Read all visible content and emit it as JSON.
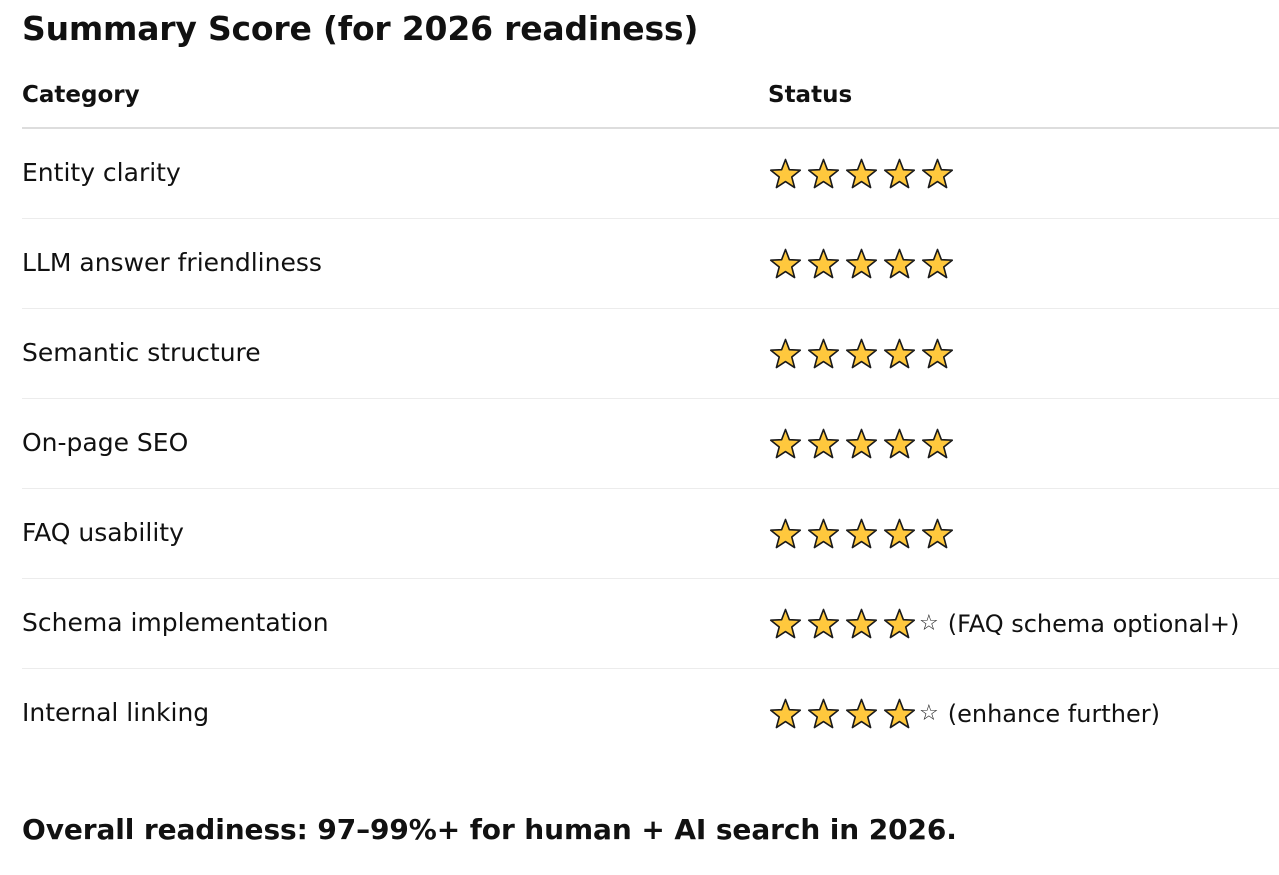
{
  "title": "Summary Score (for 2026 readiness)",
  "headers": {
    "category": "Category",
    "status": "Status"
  },
  "rows": [
    {
      "category": "Entity clarity",
      "rating": 5,
      "empty_glyph": "",
      "note": ""
    },
    {
      "category": "LLM answer friendliness",
      "rating": 5,
      "empty_glyph": "",
      "note": ""
    },
    {
      "category": "Semantic structure",
      "rating": 5,
      "empty_glyph": "",
      "note": ""
    },
    {
      "category": "On-page SEO",
      "rating": 5,
      "empty_glyph": "",
      "note": ""
    },
    {
      "category": "FAQ usability",
      "rating": 5,
      "empty_glyph": "",
      "note": ""
    },
    {
      "category": "Schema implementation",
      "rating": 4,
      "empty_glyph": "☆",
      "note": "(FAQ schema optional+)"
    },
    {
      "category": "Internal linking",
      "rating": 4,
      "empty_glyph": "☆",
      "note": "(enhance further)"
    }
  ],
  "overall": "Overall readiness: 97–99%+ for human + AI search in 2026.",
  "colors": {
    "star_fill": "#FFC83D",
    "star_stroke": "#1a1a1a"
  },
  "icons": {
    "filled_star": "star-icon",
    "empty_star": "empty-star-icon"
  }
}
